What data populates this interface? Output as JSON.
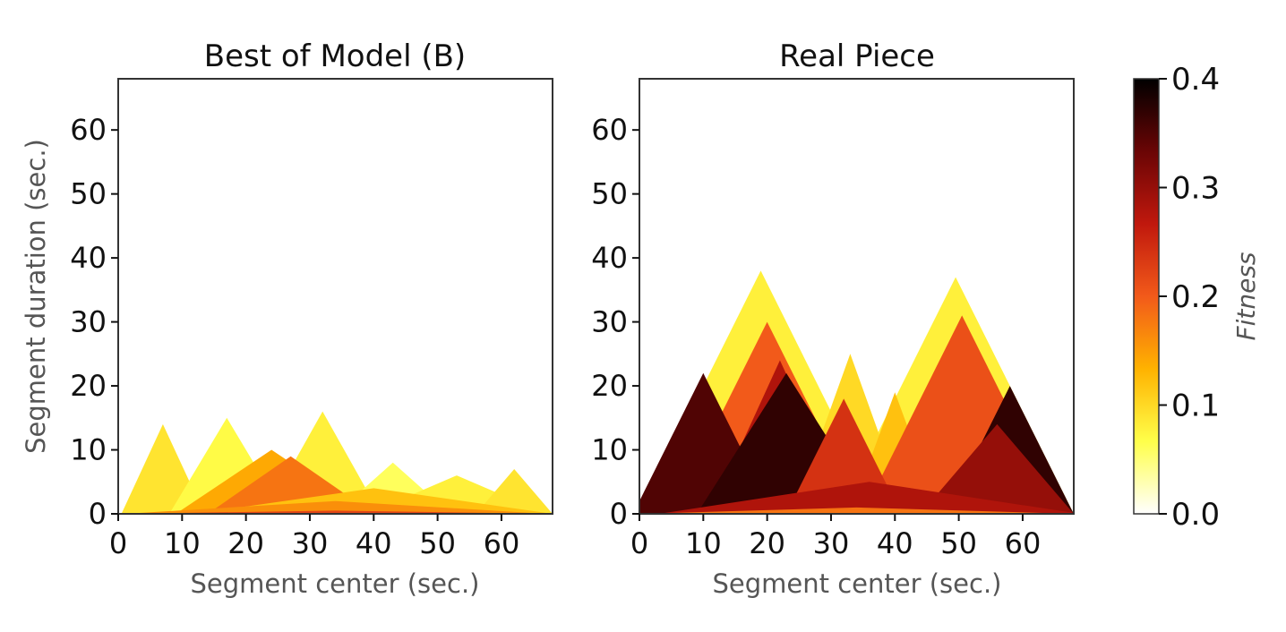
{
  "colorbar": {
    "label": "Fitness",
    "min": 0.0,
    "max": 0.4,
    "ticks": [
      "0.0",
      "0.1",
      "0.2",
      "0.3",
      "0.4"
    ],
    "colormap": "afmhot_r",
    "stops": [
      "#ffffff",
      "#ffff4a",
      "#ffb200",
      "#f25a1a",
      "#c0180d",
      "#6a0505",
      "#000000"
    ]
  },
  "chart_data": [
    {
      "type": "heatmap",
      "title": "Best of Model (B)",
      "xlabel": "Segment center (sec.)",
      "ylabel": "Segment duration (sec.)",
      "xlim": [
        0,
        68
      ],
      "ylim": [
        0,
        68
      ],
      "xticks": [
        "0",
        "10",
        "20",
        "30",
        "40",
        "50",
        "60"
      ],
      "yticks": [
        "0",
        "10",
        "20",
        "30",
        "40",
        "50",
        "60"
      ],
      "regions": [
        {
          "c": 7,
          "w": 13,
          "h": 14,
          "v": 0.09
        },
        {
          "c": 17,
          "w": 18,
          "h": 15,
          "v": 0.07
        },
        {
          "c": 32,
          "w": 18,
          "h": 16,
          "v": 0.08
        },
        {
          "c": 24,
          "w": 30,
          "h": 10,
          "v": 0.14
        },
        {
          "c": 27,
          "w": 26,
          "h": 9,
          "v": 0.18
        },
        {
          "c": 43,
          "w": 18,
          "h": 8,
          "v": 0.06
        },
        {
          "c": 53,
          "w": 28,
          "h": 6,
          "v": 0.08
        },
        {
          "c": 62,
          "w": 12,
          "h": 7,
          "v": 0.09
        },
        {
          "c": 40,
          "w": 56,
          "h": 4,
          "v": 0.12
        },
        {
          "c": 34,
          "w": 66,
          "h": 2,
          "v": 0.16
        },
        {
          "c": 34,
          "w": 68,
          "h": 0.5,
          "v": 0.22
        }
      ]
    },
    {
      "type": "heatmap",
      "title": "Real Piece",
      "xlabel": "Segment center (sec.)",
      "ylabel": "",
      "xlim": [
        0,
        68
      ],
      "ylim": [
        0,
        68
      ],
      "xticks": [
        "0",
        "10",
        "20",
        "30",
        "40",
        "50",
        "60"
      ],
      "yticks": [
        "0",
        "10",
        "20",
        "30",
        "40",
        "50",
        "60"
      ],
      "regions": [
        {
          "c": 19,
          "w": 38,
          "h": 38,
          "v": 0.08
        },
        {
          "c": 49.5,
          "w": 37,
          "h": 37,
          "v": 0.08
        },
        {
          "c": 33,
          "w": 18,
          "h": 25,
          "v": 0.1
        },
        {
          "c": 40,
          "w": 14,
          "h": 19,
          "v": 0.12
        },
        {
          "c": 20,
          "w": 30,
          "h": 30,
          "v": 0.2
        },
        {
          "c": 50.5,
          "w": 31,
          "h": 31,
          "v": 0.21
        },
        {
          "c": 22,
          "w": 22,
          "h": 24,
          "v": 0.28
        },
        {
          "c": 10,
          "w": 22,
          "h": 22,
          "v": 0.35
        },
        {
          "c": 23,
          "w": 28,
          "h": 22,
          "v": 0.37
        },
        {
          "c": 32,
          "w": 18,
          "h": 18,
          "v": 0.24
        },
        {
          "c": 58,
          "w": 20,
          "h": 20,
          "v": 0.37
        },
        {
          "c": 56,
          "w": 24,
          "h": 14,
          "v": 0.3
        },
        {
          "c": 36,
          "w": 66,
          "h": 5,
          "v": 0.28
        },
        {
          "c": 34,
          "w": 68,
          "h": 1,
          "v": 0.18
        }
      ]
    }
  ]
}
